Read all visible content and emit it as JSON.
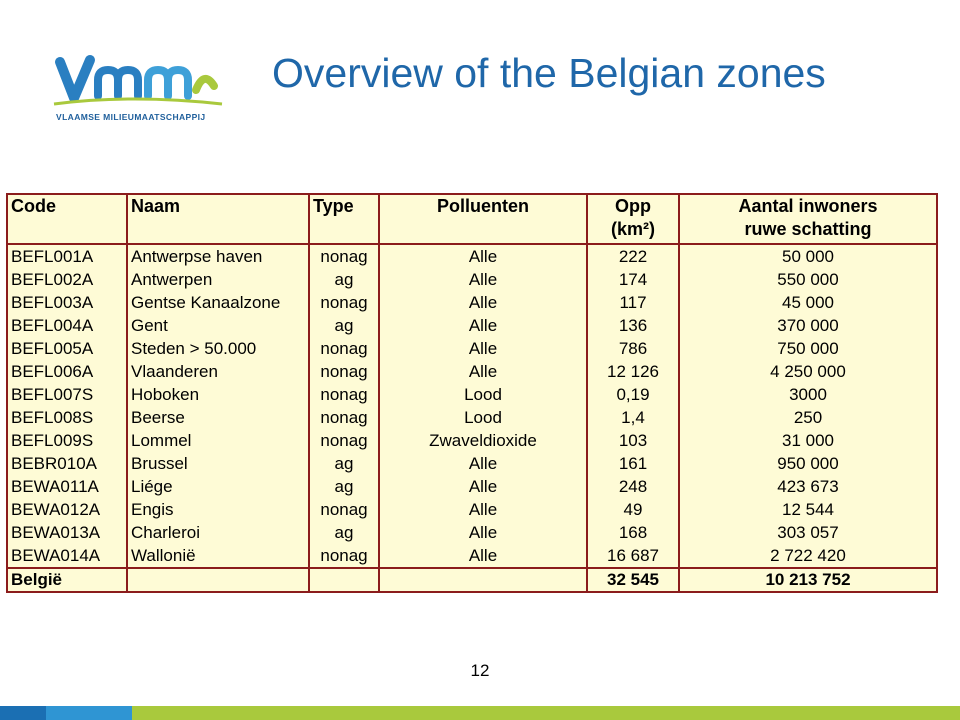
{
  "logo": {
    "wordmark": "VMM",
    "subtitle": "VLAAMSE MILIEUMAATSCHAPPIJ"
  },
  "title": "Overview of the Belgian zones",
  "table": {
    "headers": {
      "code": "Code",
      "naam": "Naam",
      "type": "Type",
      "polluenten": "Polluenten",
      "opp_line1": "Opp",
      "opp_line2": "(km²)",
      "inwoners_line1": "Aantal inwoners",
      "inwoners_line2": "ruwe schatting"
    },
    "rows": [
      {
        "code": "BEFL001A",
        "naam": "Antwerpse haven",
        "type": "nonag",
        "polluenten": "Alle",
        "opp": "222",
        "inwoners": "50 000"
      },
      {
        "code": "BEFL002A",
        "naam": "Antwerpen",
        "type": "ag",
        "polluenten": "Alle",
        "opp": "174",
        "inwoners": "550 000"
      },
      {
        "code": "BEFL003A",
        "naam": "Gentse Kanaalzone",
        "type": "nonag",
        "polluenten": "Alle",
        "opp": "117",
        "inwoners": "45 000"
      },
      {
        "code": "BEFL004A",
        "naam": "Gent",
        "type": "ag",
        "polluenten": "Alle",
        "opp": "136",
        "inwoners": "370 000"
      },
      {
        "code": "BEFL005A",
        "naam": "Steden > 50.000",
        "type": "nonag",
        "polluenten": "Alle",
        "opp": "786",
        "inwoners": "750 000"
      },
      {
        "code": "BEFL006A",
        "naam": "Vlaanderen",
        "type": "nonag",
        "polluenten": "Alle",
        "opp": "12 126",
        "inwoners": "4 250 000"
      },
      {
        "code": "BEFL007S",
        "naam": "Hoboken",
        "type": "nonag",
        "polluenten": "Lood",
        "opp": "0,19",
        "inwoners": "3000"
      },
      {
        "code": "BEFL008S",
        "naam": "Beerse",
        "type": "nonag",
        "polluenten": "Lood",
        "opp": "1,4",
        "inwoners": "250"
      },
      {
        "code": "BEFL009S",
        "naam": "Lommel",
        "type": "nonag",
        "polluenten": "Zwaveldioxide",
        "opp": "103",
        "inwoners": "31 000"
      },
      {
        "code": "BEBR010A",
        "naam": "Brussel",
        "type": "ag",
        "polluenten": "Alle",
        "opp": "161",
        "inwoners": "950 000"
      },
      {
        "code": "BEWA011A",
        "naam": "Liége",
        "type": "ag",
        "polluenten": "Alle",
        "opp": "248",
        "inwoners": "423 673"
      },
      {
        "code": "BEWA012A",
        "naam": "Engis",
        "type": "nonag",
        "polluenten": "Alle",
        "opp": "49",
        "inwoners": "12 544"
      },
      {
        "code": "BEWA013A",
        "naam": "Charleroi",
        "type": "ag",
        "polluenten": "Alle",
        "opp": "168",
        "inwoners": "303 057"
      },
      {
        "code": "BEWA014A",
        "naam": "Wallonië",
        "type": "nonag",
        "polluenten": "Alle",
        "opp": "16 687",
        "inwoners": "2 722 420"
      }
    ],
    "total": {
      "code": "België",
      "naam": "",
      "type": "",
      "polluenten": "",
      "opp": "32 545",
      "inwoners": "10 213 752"
    }
  },
  "page_number": "12",
  "colors": {
    "title": "#1f67a9",
    "table_bg": "#fefbd6",
    "table_border": "#8b1c1c",
    "footer_blue_dark": "#1b6fb3",
    "footer_blue_light": "#2f95d3",
    "footer_green": "#a9c93d"
  }
}
